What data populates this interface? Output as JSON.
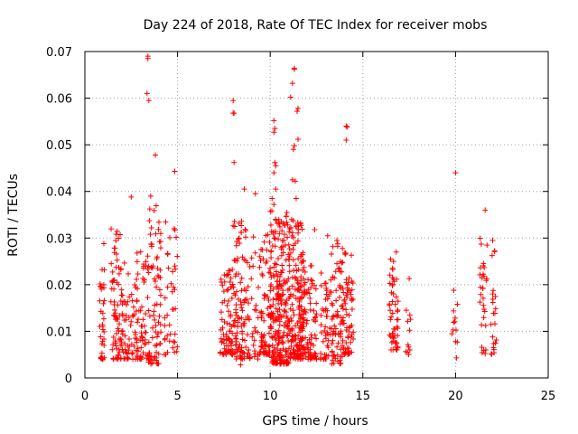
{
  "chart_data": {
    "type": "scatter",
    "title": "Day 224 of 2018, Rate Of TEC Index for receiver mobs",
    "xlabel": "GPS time / hours",
    "ylabel": "ROTI / TECUs",
    "xlim": [
      0,
      25
    ],
    "ylim": [
      0,
      0.07
    ],
    "xticks": [
      0,
      5,
      10,
      15,
      20,
      25
    ],
    "yticks": [
      0,
      0.01,
      0.02,
      0.03,
      0.04,
      0.05,
      0.06,
      0.07
    ],
    "xtick_labels": [
      "0",
      "5",
      "10",
      "15",
      "20",
      "25"
    ],
    "ytick_labels": [
      "0",
      "0.01",
      "0.02",
      "0.03",
      "0.04",
      "0.05",
      "0.06",
      "0.07"
    ],
    "grid": true,
    "marker": "+",
    "color": "#ff0000",
    "series": [
      {
        "name": "ROTI",
        "note": "Outlying points read from the figure; dense clusters are listed as per-hour bands and expanded into individual points by the script.",
        "points": [
          [
            3.4,
            0.069
          ],
          [
            3.4,
            0.0685
          ],
          [
            3.35,
            0.061
          ],
          [
            3.45,
            0.0595
          ],
          [
            3.8,
            0.0478
          ],
          [
            4.85,
            0.0443
          ],
          [
            2.5,
            0.0388
          ],
          [
            3.55,
            0.039
          ],
          [
            8.0,
            0.0595
          ],
          [
            8.0,
            0.0568
          ],
          [
            8.05,
            0.0568
          ],
          [
            8.05,
            0.0462
          ],
          [
            8.6,
            0.0405
          ],
          [
            9.2,
            0.0395
          ],
          [
            14.1,
            0.054
          ],
          [
            14.15,
            0.0538
          ],
          [
            14.1,
            0.051
          ],
          [
            20.0,
            0.044
          ],
          [
            21.6,
            0.036
          ],
          [
            22.0,
            0.0295
          ],
          [
            11.3,
            0.0664
          ],
          [
            11.3,
            0.0662
          ],
          [
            11.2,
            0.0632
          ],
          [
            11.1,
            0.0602
          ],
          [
            11.5,
            0.0578
          ],
          [
            11.45,
            0.0572
          ],
          [
            10.2,
            0.0552
          ],
          [
            10.25,
            0.0535
          ],
          [
            10.2,
            0.0527
          ],
          [
            11.5,
            0.0512
          ],
          [
            11.3,
            0.0498
          ],
          [
            11.25,
            0.049
          ],
          [
            10.25,
            0.0462
          ],
          [
            10.3,
            0.0455
          ],
          [
            10.2,
            0.044
          ],
          [
            11.2,
            0.0425
          ],
          [
            11.35,
            0.0422
          ],
          [
            10.3,
            0.0405
          ],
          [
            10.1,
            0.0385
          ],
          [
            10.2,
            0.0372
          ],
          [
            11.4,
            0.0385
          ],
          [
            12.4,
            0.0318
          ],
          [
            13.1,
            0.0305
          ],
          [
            13.6,
            0.0295
          ],
          [
            16.8,
            0.027
          ],
          [
            17.5,
            0.0213
          ],
          [
            19.9,
            0.0188
          ],
          [
            20.1,
            0.0158
          ],
          [
            20.0,
            0.0078
          ],
          [
            20.05,
            0.0043
          ],
          [
            22.0,
            0.0088
          ],
          [
            22.05,
            0.0065
          ],
          [
            8.4,
            0.0028
          ],
          [
            16.6,
            0.0235
          ],
          [
            16.9,
            0.0125
          ],
          [
            17.4,
            0.0055
          ]
        ],
        "bands": [
          {
            "x": [
              0.8,
              1.05
            ],
            "y": [
              0.004,
              0.03
            ],
            "n": 34
          },
          {
            "x": [
              1.4,
              2.2
            ],
            "y": [
              0.004,
              0.032
            ],
            "n": 90
          },
          {
            "x": [
              2.2,
              2.8
            ],
            "y": [
              0.004,
              0.025
            ],
            "n": 40
          },
          {
            "x": [
              2.8,
              3.4
            ],
            "y": [
              0.004,
              0.029
            ],
            "n": 55
          },
          {
            "x": [
              3.4,
              4.1
            ],
            "y": [
              0.003,
              0.037
            ],
            "n": 80
          },
          {
            "x": [
              4.2,
              5.0
            ],
            "y": [
              0.005,
              0.035
            ],
            "n": 40
          },
          {
            "x": [
              7.3,
              8.0
            ],
            "y": [
              0.005,
              0.024
            ],
            "n": 80
          },
          {
            "x": [
              8.0,
              8.7
            ],
            "y": [
              0.004,
              0.034
            ],
            "n": 95
          },
          {
            "x": [
              8.7,
              9.4
            ],
            "y": [
              0.004,
              0.031
            ],
            "n": 40
          },
          {
            "x": [
              9.4,
              10.0
            ],
            "y": [
              0.005,
              0.031
            ],
            "n": 70
          },
          {
            "x": [
              10.0,
              11.0
            ],
            "y": [
              0.003,
              0.036
            ],
            "n": 240
          },
          {
            "x": [
              11.0,
              11.9
            ],
            "y": [
              0.004,
              0.034
            ],
            "n": 200
          },
          {
            "x": [
              11.9,
              12.5
            ],
            "y": [
              0.004,
              0.025
            ],
            "n": 60
          },
          {
            "x": [
              12.7,
              13.3
            ],
            "y": [
              0.004,
              0.024
            ],
            "n": 45
          },
          {
            "x": [
              13.3,
              13.9
            ],
            "y": [
              0.003,
              0.029
            ],
            "n": 70
          },
          {
            "x": [
              13.9,
              14.5
            ],
            "y": [
              0.005,
              0.027
            ],
            "n": 70
          },
          {
            "x": [
              16.4,
              16.9
            ],
            "y": [
              0.006,
              0.026
            ],
            "n": 50
          },
          {
            "x": [
              17.3,
              17.6
            ],
            "y": [
              0.005,
              0.016
            ],
            "n": 10
          },
          {
            "x": [
              19.8,
              20.1
            ],
            "y": [
              0.007,
              0.016
            ],
            "n": 8
          },
          {
            "x": [
              21.3,
              21.7
            ],
            "y": [
              0.005,
              0.03
            ],
            "n": 30
          },
          {
            "x": [
              21.9,
              22.2
            ],
            "y": [
              0.005,
              0.029
            ],
            "n": 20
          }
        ]
      }
    ]
  }
}
